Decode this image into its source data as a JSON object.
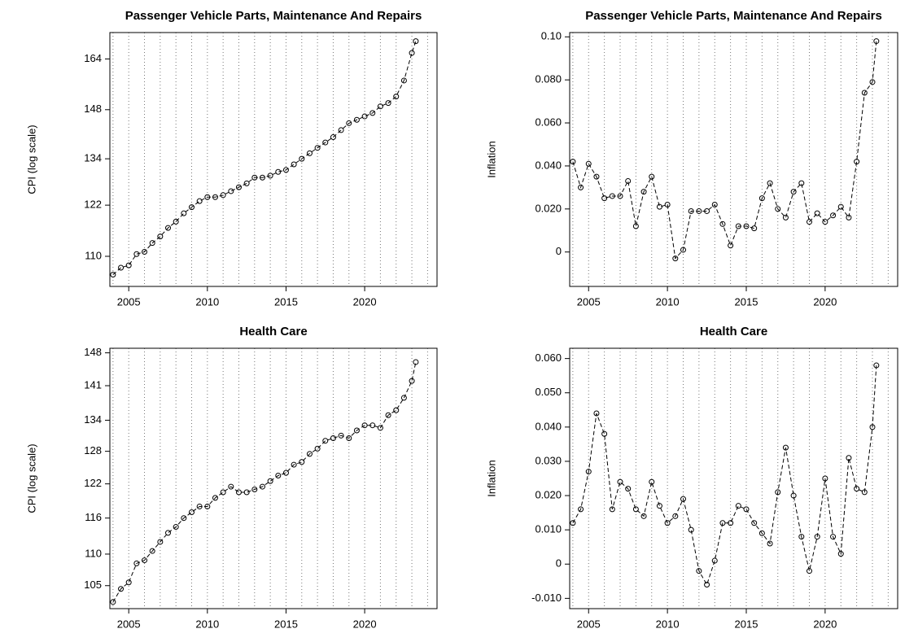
{
  "chart_data": [
    {
      "type": "line",
      "title": "Passenger Vehicle Parts, Maintenance And Repairs",
      "y_label": "CPI (log scale)",
      "log_y": true,
      "grid_step": 1,
      "x": [
        2004,
        2004.5,
        2005,
        2005.5,
        2006,
        2006.5,
        2007,
        2007.5,
        2008,
        2008.5,
        2009,
        2009.5,
        2010,
        2010.5,
        2011,
        2011.5,
        2012,
        2012.5,
        2013,
        2013.5,
        2014,
        2014.5,
        2015,
        2015.5,
        2016,
        2016.5,
        2017,
        2017.5,
        2018,
        2018.5,
        2019,
        2019.5,
        2020,
        2020.5,
        2021,
        2021.5,
        2022,
        2022.5,
        2023,
        2023.25
      ],
      "values": [
        106,
        107.5,
        108,
        110.5,
        111,
        113,
        114.5,
        116.5,
        118,
        120,
        121.5,
        123,
        124,
        124,
        124.5,
        125.5,
        126.5,
        127.5,
        129,
        129,
        129.5,
        130.5,
        131,
        132.5,
        134,
        135.5,
        137,
        138.5,
        140,
        142,
        144,
        145,
        146,
        147,
        149,
        150,
        152,
        157,
        166,
        170
      ],
      "xlim": [
        2003.8,
        2024.6
      ],
      "xticks": [
        2005,
        2010,
        2015,
        2020
      ],
      "ylim": [
        103.5,
        173
      ],
      "yticks": [
        110,
        122,
        134,
        148,
        164
      ]
    },
    {
      "type": "line",
      "title": "Passenger Vehicle Parts, Maintenance And Repairs",
      "y_label": "Inflation",
      "log_y": false,
      "grid_step": 1,
      "x": [
        2004,
        2004.5,
        2005,
        2005.5,
        2006,
        2006.5,
        2007,
        2007.5,
        2008,
        2008.5,
        2009,
        2009.5,
        2010,
        2010.5,
        2011,
        2011.5,
        2012,
        2012.5,
        2013,
        2013.5,
        2014,
        2014.5,
        2015,
        2015.5,
        2016,
        2016.5,
        2017,
        2017.5,
        2018,
        2018.5,
        2019,
        2019.5,
        2020,
        2020.5,
        2021,
        2021.5,
        2022,
        2022.5,
        2023,
        2023.25
      ],
      "values": [
        0.042,
        0.03,
        0.041,
        0.035,
        0.025,
        0.026,
        0.026,
        0.033,
        0.012,
        0.028,
        0.035,
        0.021,
        0.022,
        -0.003,
        0.001,
        0.019,
        0.019,
        0.019,
        0.022,
        0.013,
        0.003,
        0.012,
        0.012,
        0.011,
        0.025,
        0.032,
        0.02,
        0.016,
        0.028,
        0.032,
        0.014,
        0.018,
        0.014,
        0.017,
        0.021,
        0.016,
        0.042,
        0.074,
        0.079,
        0.098
      ],
      "xlim": [
        2003.8,
        2024.6
      ],
      "xticks": [
        2005,
        2010,
        2015,
        2020
      ],
      "ylim": [
        -0.016,
        0.102
      ],
      "yticks": [
        0,
        {
          "value": 0.02,
          "label": "0.020"
        },
        {
          "value": 0.04,
          "label": "0.040"
        },
        {
          "value": 0.06,
          "label": "0.060"
        },
        {
          "value": 0.08,
          "label": "0.080"
        },
        {
          "value": 0.1,
          "label": "0.10"
        }
      ]
    },
    {
      "type": "line",
      "title": "Health Care",
      "y_label": "CPI (log scale)",
      "log_y": true,
      "grid_step": 1,
      "x": [
        2004,
        2004.5,
        2005,
        2005.5,
        2006,
        2006.5,
        2007,
        2007.5,
        2008,
        2008.5,
        2009,
        2009.5,
        2010,
        2010.5,
        2011,
        2011.5,
        2012,
        2012.5,
        2013,
        2013.5,
        2014,
        2014.5,
        2015,
        2015.5,
        2016,
        2016.5,
        2017,
        2017.5,
        2018,
        2018.5,
        2019,
        2019.5,
        2020,
        2020.5,
        2021,
        2021.5,
        2022,
        2022.5,
        2023,
        2023.25
      ],
      "values": [
        102.5,
        104.5,
        105.5,
        108.5,
        109,
        110.5,
        112,
        113.5,
        114.5,
        116,
        117,
        118,
        118,
        119.5,
        120.5,
        121.5,
        120.5,
        120.5,
        121,
        121.5,
        122.5,
        123.5,
        124,
        125.5,
        126,
        127.5,
        128.5,
        130,
        130.5,
        131,
        130.5,
        132,
        133,
        133,
        132.5,
        135,
        136,
        138.5,
        142,
        146
      ],
      "xlim": [
        2003.8,
        2024.6
      ],
      "xticks": [
        2005,
        2010,
        2015,
        2020
      ],
      "ylim": [
        101.5,
        149
      ],
      "yticks": [
        105,
        110,
        116,
        122,
        128,
        134,
        141,
        148
      ]
    },
    {
      "type": "line",
      "title": "Health Care",
      "y_label": "Inflation",
      "log_y": false,
      "grid_step": 1,
      "x": [
        2004,
        2004.5,
        2005,
        2005.5,
        2006,
        2006.5,
        2007,
        2007.5,
        2008,
        2008.5,
        2009,
        2009.5,
        2010,
        2010.5,
        2011,
        2011.5,
        2012,
        2012.5,
        2013,
        2013.5,
        2014,
        2014.5,
        2015,
        2015.5,
        2016,
        2016.5,
        2017,
        2017.5,
        2018,
        2018.5,
        2019,
        2019.5,
        2020,
        2020.5,
        2021,
        2021.5,
        2022,
        2022.5,
        2023,
        2023.25
      ],
      "values": [
        0.012,
        0.016,
        0.027,
        0.044,
        0.038,
        0.016,
        0.024,
        0.022,
        0.016,
        0.014,
        0.024,
        0.017,
        0.012,
        0.014,
        0.019,
        0.01,
        -0.002,
        -0.006,
        0.001,
        0.012,
        0.012,
        0.017,
        0.016,
        0.012,
        0.009,
        0.006,
        0.021,
        0.034,
        0.02,
        0.008,
        -0.002,
        0.008,
        0.025,
        0.008,
        0.003,
        0.031,
        0.022,
        0.021,
        0.04,
        0.058
      ],
      "xlim": [
        2003.8,
        2024.6
      ],
      "xticks": [
        2005,
        2010,
        2015,
        2020
      ],
      "ylim": [
        -0.013,
        0.063
      ],
      "yticks": [
        {
          "value": -0.01,
          "label": "-0.010"
        },
        0,
        {
          "value": 0.01,
          "label": "0.010"
        },
        {
          "value": 0.02,
          "label": "0.020"
        },
        {
          "value": 0.03,
          "label": "0.030"
        },
        {
          "value": 0.04,
          "label": "0.040"
        },
        {
          "value": 0.05,
          "label": "0.050"
        },
        {
          "value": 0.06,
          "label": "0.060"
        }
      ]
    }
  ]
}
